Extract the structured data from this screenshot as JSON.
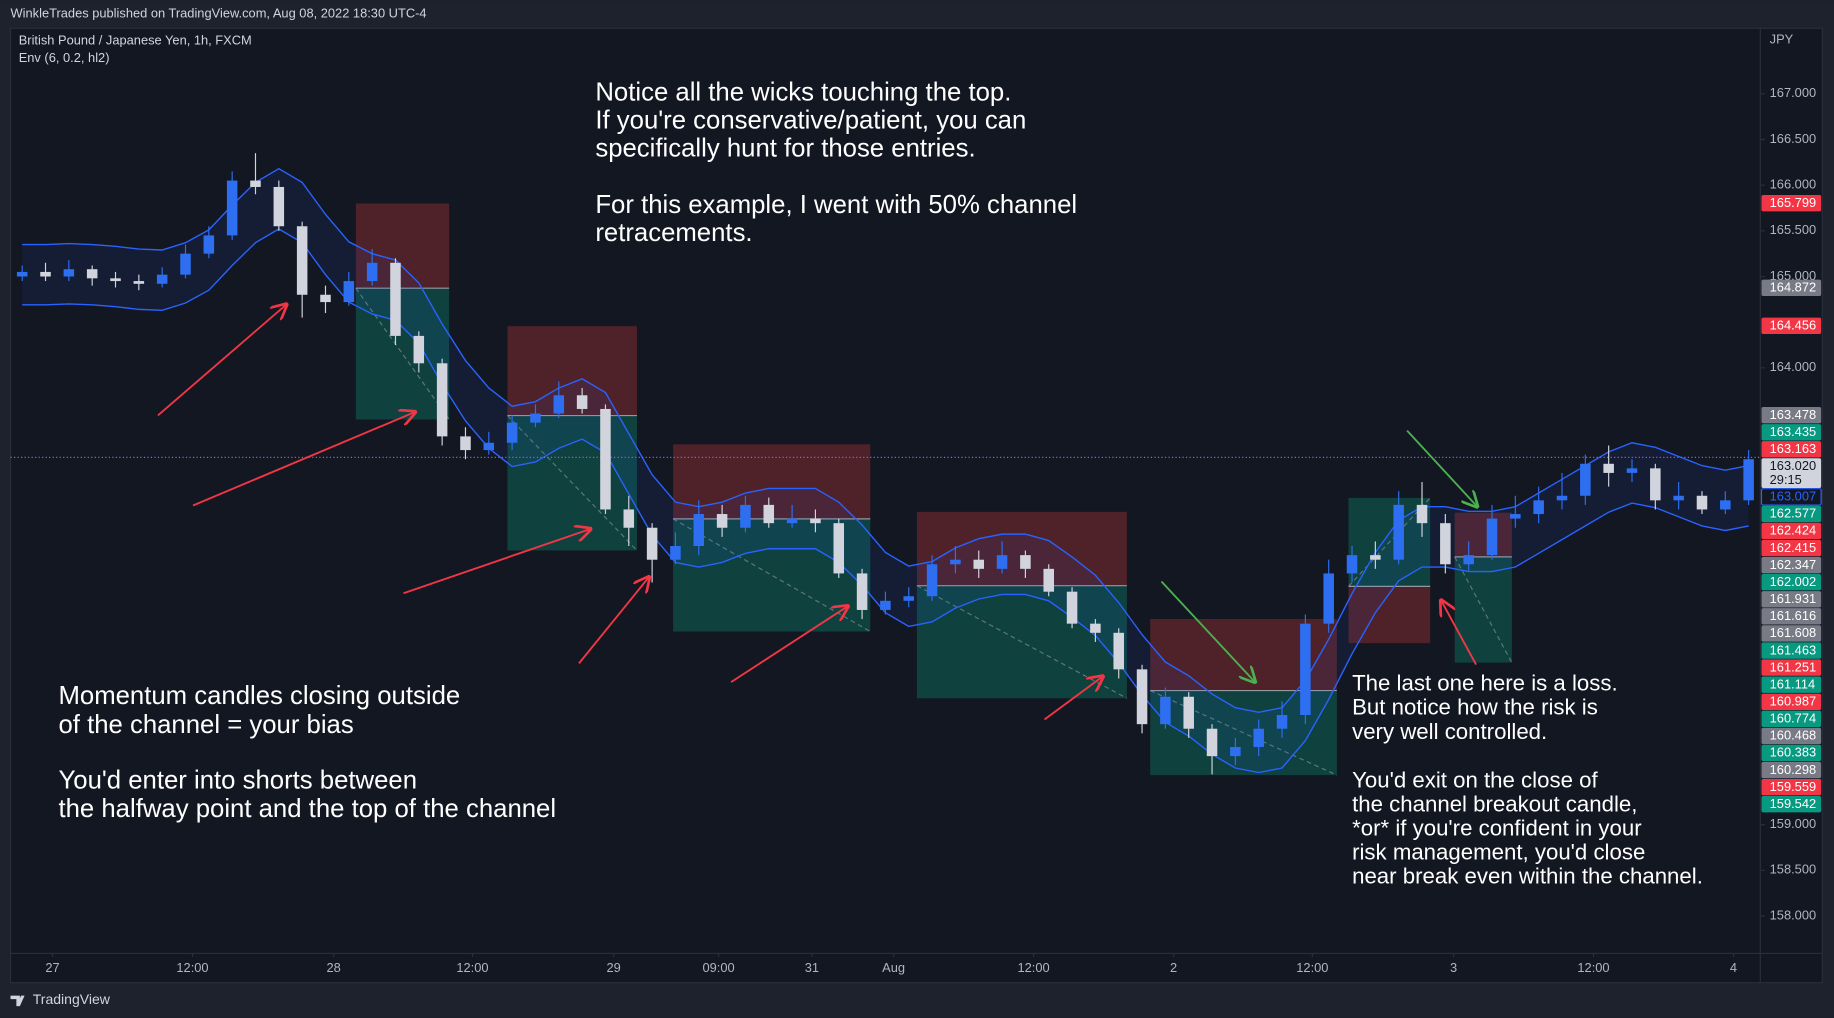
{
  "header": "WinkleTrades published on TradingView.com, Aug 08, 2022 18:30 UTC-4",
  "footer": "TradingView",
  "chart_data": {
    "type": "candlestick",
    "title": "British Pound / Japanese Yen, 1h, FXCM",
    "indicator": "Env (6, 0.2, hl2)",
    "currency": "JPY",
    "up_color": "#2d6ff0",
    "down_color": "#d1d4dc",
    "x": [
      1,
      3,
      5,
      7,
      9,
      11,
      13,
      15,
      17,
      19,
      21,
      23,
      25,
      27,
      29,
      31,
      33,
      35,
      37,
      39,
      41,
      43,
      45,
      47,
      49,
      51,
      53,
      55,
      57,
      59,
      61,
      63,
      65,
      67,
      69,
      71,
      73,
      75,
      77,
      79,
      81,
      83,
      85,
      87,
      89,
      91,
      93,
      95,
      97,
      99,
      101,
      103,
      105,
      107,
      109,
      111,
      113,
      115,
      117,
      119,
      121,
      123,
      125,
      127,
      129,
      131,
      133,
      135,
      137,
      139,
      141,
      143,
      145,
      147,
      149
    ],
    "open": [
      165.0,
      165.05,
      165.0,
      165.08,
      164.98,
      164.95,
      164.92,
      165.02,
      165.25,
      165.45,
      166.05,
      165.98,
      165.55,
      164.8,
      164.72,
      164.95,
      165.15,
      164.35,
      164.05,
      163.25,
      163.1,
      163.18,
      163.4,
      163.5,
      163.7,
      163.55,
      162.45,
      162.25,
      161.9,
      162.05,
      162.4,
      162.25,
      162.5,
      162.3,
      162.35,
      162.3,
      161.75,
      161.35,
      161.45,
      161.5,
      161.85,
      161.9,
      161.8,
      161.95,
      161.8,
      161.55,
      161.2,
      161.1,
      160.7,
      160.1,
      160.4,
      160.05,
      159.75,
      159.85,
      160.05,
      160.2,
      161.2,
      161.75,
      161.95,
      161.9,
      162.5,
      162.3,
      161.85,
      161.95,
      162.35,
      162.4,
      162.55,
      162.6,
      162.95,
      162.85,
      162.9,
      162.55,
      162.6,
      162.45,
      162.55
    ],
    "high": [
      165.12,
      165.15,
      165.18,
      165.12,
      165.05,
      165.02,
      165.1,
      165.35,
      165.55,
      166.15,
      166.35,
      166.05,
      165.6,
      164.9,
      165.05,
      165.3,
      165.2,
      164.4,
      164.1,
      163.35,
      163.3,
      163.48,
      163.6,
      163.85,
      163.78,
      163.6,
      162.6,
      162.3,
      162.2,
      162.55,
      162.5,
      162.6,
      162.58,
      162.5,
      162.45,
      162.35,
      161.8,
      161.55,
      161.6,
      161.95,
      162.05,
      162.0,
      162.1,
      162.0,
      161.85,
      161.6,
      161.25,
      161.15,
      160.75,
      160.5,
      160.45,
      160.1,
      159.95,
      160.15,
      160.35,
      161.3,
      161.9,
      162.05,
      162.1,
      162.65,
      162.75,
      162.4,
      162.1,
      162.5,
      162.6,
      162.7,
      162.85,
      163.05,
      163.15,
      163.0,
      162.95,
      162.75,
      162.65,
      162.65,
      163.1
    ],
    "low": [
      164.95,
      164.95,
      164.95,
      164.9,
      164.88,
      164.85,
      164.88,
      164.98,
      165.2,
      165.4,
      165.9,
      165.5,
      164.55,
      164.6,
      164.68,
      164.9,
      164.25,
      163.95,
      163.15,
      163.0,
      163.05,
      163.1,
      163.35,
      163.45,
      163.5,
      162.4,
      162.05,
      161.65,
      161.85,
      161.95,
      162.15,
      162.2,
      162.25,
      162.25,
      162.2,
      161.7,
      161.25,
      161.3,
      161.38,
      161.45,
      161.75,
      161.7,
      161.75,
      161.7,
      161.5,
      161.15,
      161.0,
      160.6,
      160.0,
      160.05,
      159.95,
      159.55,
      159.65,
      159.75,
      159.95,
      160.1,
      161.1,
      161.65,
      161.8,
      161.85,
      162.15,
      161.75,
      161.78,
      161.9,
      162.25,
      162.3,
      162.45,
      162.5,
      162.7,
      162.75,
      162.45,
      162.45,
      162.4,
      162.4,
      162.5
    ],
    "close": [
      165.05,
      165.0,
      165.08,
      164.98,
      164.95,
      164.92,
      165.02,
      165.25,
      165.45,
      166.05,
      165.98,
      165.55,
      164.8,
      164.72,
      164.95,
      165.15,
      164.35,
      164.05,
      163.25,
      163.1,
      163.18,
      163.4,
      163.5,
      163.7,
      163.55,
      162.45,
      162.25,
      161.9,
      162.05,
      162.4,
      162.25,
      162.5,
      162.3,
      162.35,
      162.3,
      161.75,
      161.35,
      161.45,
      161.5,
      161.85,
      161.9,
      161.8,
      161.95,
      161.8,
      161.55,
      161.2,
      161.1,
      160.7,
      160.1,
      160.4,
      160.05,
      159.75,
      159.85,
      160.05,
      160.2,
      161.2,
      161.75,
      161.95,
      161.9,
      162.5,
      162.3,
      161.85,
      161.95,
      162.35,
      162.4,
      162.55,
      162.6,
      162.95,
      162.85,
      162.9,
      162.55,
      162.6,
      162.45,
      162.55,
      163.0
    ],
    "envelope": {
      "color": "#2962ff",
      "upper": [
        165.35,
        165.35,
        165.36,
        165.35,
        165.33,
        165.3,
        165.29,
        165.37,
        165.51,
        165.78,
        166.03,
        166.18,
        166.03,
        165.68,
        165.38,
        165.25,
        165.18,
        164.93,
        164.48,
        164.08,
        163.78,
        163.58,
        163.63,
        163.78,
        163.88,
        163.73,
        163.28,
        162.83,
        162.53,
        162.48,
        162.53,
        162.63,
        162.68,
        162.68,
        162.68,
        162.53,
        162.28,
        161.98,
        161.83,
        161.88,
        162.03,
        162.13,
        162.18,
        162.18,
        162.11,
        161.93,
        161.73,
        161.43,
        161.08,
        160.78,
        160.63,
        160.43,
        160.28,
        160.23,
        160.28,
        160.58,
        161.03,
        161.53,
        161.98,
        162.33,
        162.48,
        162.48,
        162.43,
        162.43,
        162.48,
        162.63,
        162.78,
        162.93,
        163.08,
        163.18,
        163.13,
        163.03,
        162.93,
        162.88,
        162.93
      ],
      "lower": [
        164.69,
        164.69,
        164.7,
        164.69,
        164.67,
        164.64,
        164.63,
        164.71,
        164.85,
        165.12,
        165.37,
        165.52,
        165.37,
        165.02,
        164.72,
        164.59,
        164.52,
        164.27,
        163.82,
        163.42,
        163.12,
        162.92,
        162.97,
        163.12,
        163.22,
        163.07,
        162.62,
        162.17,
        161.87,
        161.82,
        161.87,
        161.97,
        162.02,
        162.02,
        162.02,
        161.87,
        161.62,
        161.32,
        161.17,
        161.22,
        161.37,
        161.47,
        161.52,
        161.52,
        161.45,
        161.27,
        161.07,
        160.77,
        160.42,
        160.12,
        159.97,
        159.77,
        159.62,
        159.57,
        159.62,
        159.92,
        160.37,
        160.87,
        161.32,
        161.67,
        161.82,
        161.82,
        161.77,
        161.77,
        161.82,
        161.97,
        162.12,
        162.27,
        162.42,
        162.52,
        162.47,
        162.37,
        162.27,
        162.22,
        162.27
      ]
    },
    "position_colors": {
      "stop": "#5a2329",
      "target": "#0f4a44"
    },
    "positions": [
      {
        "x": [
          29.6,
          37.6
        ],
        "stop": 165.799,
        "entry": 164.872,
        "target": 163.435
      },
      {
        "x": [
          42.6,
          53.7
        ],
        "stop": 164.456,
        "entry": 163.478,
        "target": 162.002
      },
      {
        "x": [
          56.8,
          73.7
        ],
        "stop": 163.163,
        "entry": 162.347,
        "target": 161.114
      },
      {
        "x": [
          77.7,
          95.7
        ],
        "stop": 162.424,
        "entry": 161.616,
        "target": 160.383
      },
      {
        "x": [
          97.7,
          113.7
        ],
        "stop": 161.251,
        "entry": 160.468,
        "target": 159.542
      },
      {
        "x": [
          114.7,
          121.7
        ],
        "stop": 160.987,
        "entry": 161.608,
        "target": 162.577
      },
      {
        "x": [
          123.8,
          128.7
        ],
        "stop": 162.415,
        "entry": 161.931,
        "target": 160.774
      }
    ],
    "xlim": [
      0,
      150
    ],
    "xticks": [
      {
        "value": 3.6,
        "label": "27"
      },
      {
        "value": 15.6,
        "label": "12:00"
      },
      {
        "value": 27.7,
        "label": "28"
      },
      {
        "value": 39.6,
        "label": "12:00"
      },
      {
        "value": 51.7,
        "label": "29"
      },
      {
        "value": 60.7,
        "label": "09:00"
      },
      {
        "value": 68.7,
        "label": "31"
      },
      {
        "value": 75.7,
        "label": "Aug"
      },
      {
        "value": 87.7,
        "label": "12:00"
      },
      {
        "value": 99.7,
        "label": "2"
      },
      {
        "value": 111.6,
        "label": "12:00"
      },
      {
        "value": 123.7,
        "label": "3"
      },
      {
        "value": 135.7,
        "label": "12:00"
      },
      {
        "value": 147.7,
        "label": "4"
      }
    ],
    "ylim": [
      157.59,
      167.717
    ],
    "yticks": [
      {
        "value": 158,
        "label": "158.000"
      },
      {
        "value": 158.5,
        "label": "158.500"
      },
      {
        "value": 159,
        "label": "159.000"
      },
      {
        "value": 164,
        "label": "164.000"
      },
      {
        "value": 165,
        "label": "165.000"
      },
      {
        "value": 165.5,
        "label": "165.500"
      },
      {
        "value": 166,
        "label": "166.000"
      },
      {
        "value": 166.5,
        "label": "166.500"
      },
      {
        "value": 167,
        "label": "167.000"
      }
    ],
    "grid": false,
    "price_tags": [
      {
        "value": 165.799,
        "color": "#f23645"
      },
      {
        "value": 164.872,
        "color": "#787b86"
      },
      {
        "value": 164.456,
        "color": "#f23645"
      },
      {
        "value": 163.478,
        "color": "#787b86"
      },
      {
        "value": 163.435,
        "color": "#089981"
      },
      {
        "value": 163.163,
        "color": "#f23645"
      },
      {
        "value": 163.02,
        "label": "163.020",
        "countdown": "29:15",
        "color": "#d1d4dc",
        "text_color": "#131722"
      },
      {
        "value": 163.007,
        "color": "#131722",
        "text_color": "#2962ff"
      },
      {
        "value": 162.577,
        "color": "#089981"
      },
      {
        "value": 162.424,
        "color": "#f23645"
      },
      {
        "value": 162.415,
        "color": "#f23645"
      },
      {
        "value": 162.347,
        "color": "#787b86"
      },
      {
        "value": 162.002,
        "color": "#089981"
      },
      {
        "value": 161.931,
        "color": "#787b86"
      },
      {
        "value": 161.616,
        "color": "#787b86"
      },
      {
        "value": 161.608,
        "color": "#787b86"
      },
      {
        "value": 161.463,
        "color": "#089981"
      },
      {
        "value": 161.251,
        "color": "#f23645"
      },
      {
        "value": 161.114,
        "color": "#089981"
      },
      {
        "value": 160.987,
        "color": "#f23645"
      },
      {
        "value": 160.774,
        "color": "#089981"
      },
      {
        "value": 160.468,
        "color": "#787b86"
      },
      {
        "value": 160.383,
        "color": "#089981"
      },
      {
        "value": 160.298,
        "color": "#787b86"
      },
      {
        "value": 159.559,
        "color": "#f23645"
      },
      {
        "value": 159.542,
        "color": "#089981"
      }
    ],
    "annotations": [
      {
        "lines": [
          "Notice all the wicks touching the top.",
          "If you're conservative/patient, you can",
          "specifically hunt for those entries."
        ]
      },
      {
        "lines": [
          "For this example, I went with 50% channel",
          "retracements."
        ]
      },
      {
        "lines": [
          "Momentum candles closing outside",
          "of the channel = your bias"
        ]
      },
      {
        "lines": [
          "You'd enter into shorts between",
          "the halfway point and the top of the channel"
        ]
      },
      {
        "lines": [
          "The last one here is a loss.",
          "But notice how the risk is",
          "very well controlled."
        ]
      },
      {
        "lines": [
          "You'd exit on the close of",
          "the channel breakout candle,",
          "*or* if you're confident in your",
          "risk management, you'd close",
          "near break even within the channel."
        ]
      }
    ]
  }
}
